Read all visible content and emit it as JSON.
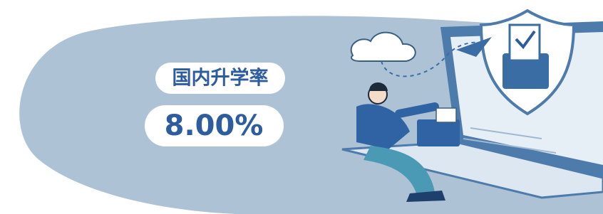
{
  "label": "国内升学率",
  "value": "8.00%"
}
